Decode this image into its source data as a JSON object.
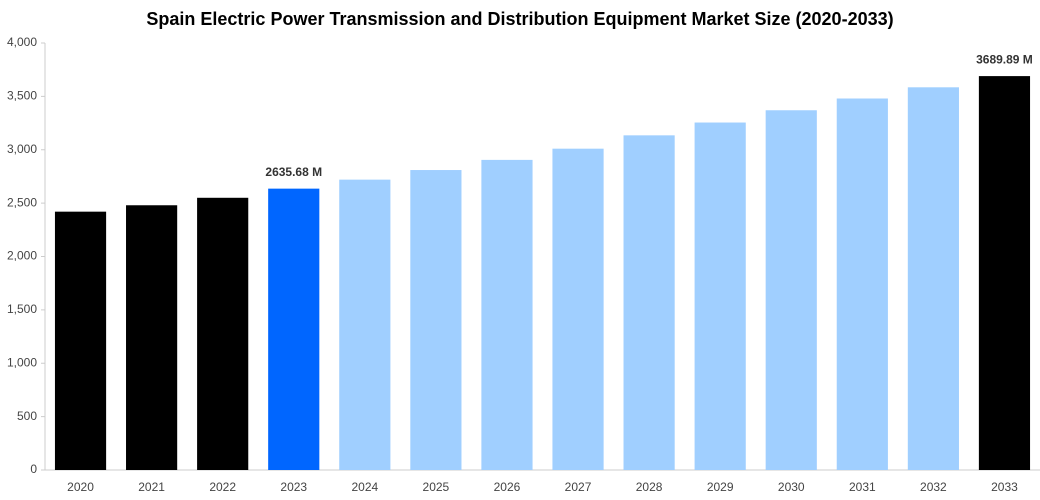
{
  "chart_data": {
    "type": "bar",
    "title": "Spain Electric Power Transmission and Distribution Equipment Market Size (2020-2033)",
    "categories": [
      "2020",
      "2021",
      "2022",
      "2023",
      "2024",
      "2025",
      "2026",
      "2027",
      "2028",
      "2029",
      "2030",
      "2031",
      "2032",
      "2033"
    ],
    "values": [
      2420,
      2480,
      2550,
      2635.68,
      2720,
      2810,
      2905,
      3010,
      3135,
      3255,
      3370,
      3480,
      3585,
      3689.89
    ],
    "value_labels": [
      null,
      null,
      null,
      "2635.68 M",
      null,
      null,
      null,
      null,
      null,
      null,
      null,
      null,
      null,
      "3689.89 M"
    ],
    "colors": [
      "#000000",
      "#000000",
      "#000000",
      "#0066ff",
      "#a0cfff",
      "#a0cfff",
      "#a0cfff",
      "#a0cfff",
      "#a0cfff",
      "#a0cfff",
      "#a0cfff",
      "#a0cfff",
      "#a0cfff",
      "#000000"
    ],
    "ylim": [
      0,
      4000
    ],
    "yticks": [
      0,
      500,
      {
        "value": 1000,
        "label": "1,000"
      },
      {
        "value": 1500,
        "label": "1,500"
      },
      {
        "value": 2000,
        "label": "2,000"
      },
      {
        "value": 2500,
        "label": "2,500"
      },
      {
        "value": 3000,
        "label": "3,000"
      },
      {
        "value": 3500,
        "label": "3,500"
      },
      {
        "value": 4000,
        "label": "4,000"
      }
    ],
    "grid": false
  }
}
